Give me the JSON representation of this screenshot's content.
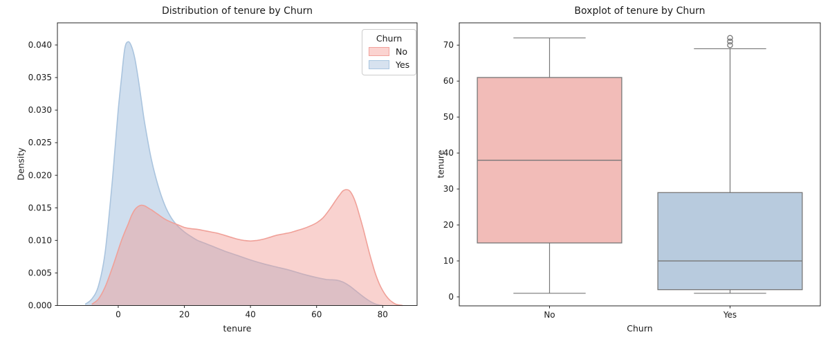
{
  "figure": {
    "background": "#ffffff",
    "text_color": "#1a1a1a",
    "spine_color": "#262626"
  },
  "chart_data": [
    {
      "type": "area",
      "subtype": "kde-density",
      "title": "Distribution of tenure by Churn",
      "xlabel": "tenure",
      "ylabel": "Density",
      "xlim": [
        -18.4,
        90.4
      ],
      "ylim": [
        0,
        0.0434
      ],
      "xticks": [
        "0",
        "20",
        "40",
        "60",
        "80"
      ],
      "yticks": [
        "0.000",
        "0.005",
        "0.010",
        "0.015",
        "0.020",
        "0.025",
        "0.030",
        "0.035",
        "0.040"
      ],
      "grid": false,
      "legend": {
        "title": "Churn",
        "position": "upper right",
        "entries": [
          {
            "label": "No",
            "fill": "#fbd3d0",
            "edge": "#f2a29c"
          },
          {
            "label": "Yes",
            "fill": "#d7e2ef",
            "edge": "#aac6e0"
          }
        ]
      },
      "series": [
        {
          "name": "Yes",
          "line_color": "#aac4de",
          "fill_color": "rgba(160,190,222,0.5)",
          "points": [
            [
              -10,
              0.0002
            ],
            [
              -8,
              0.001
            ],
            [
              -6,
              0.003
            ],
            [
              -4,
              0.008
            ],
            [
              -2,
              0.018
            ],
            [
              -1,
              0.024
            ],
            [
              0,
              0.03
            ],
            [
              1,
              0.035
            ],
            [
              2,
              0.0395
            ],
            [
              3,
              0.0405
            ],
            [
              4,
              0.0398
            ],
            [
              5,
              0.038
            ],
            [
              6,
              0.035
            ],
            [
              7,
              0.0315
            ],
            [
              8,
              0.028
            ],
            [
              10,
              0.0225
            ],
            [
              12,
              0.0185
            ],
            [
              14,
              0.0155
            ],
            [
              16,
              0.0135
            ],
            [
              18,
              0.0122
            ],
            [
              20,
              0.0113
            ],
            [
              22,
              0.0106
            ],
            [
              24,
              0.01
            ],
            [
              26,
              0.0096
            ],
            [
              28,
              0.0092
            ],
            [
              30,
              0.0088
            ],
            [
              33,
              0.0082
            ],
            [
              36,
              0.0077
            ],
            [
              40,
              0.007
            ],
            [
              44,
              0.0064
            ],
            [
              48,
              0.0059
            ],
            [
              52,
              0.0054
            ],
            [
              56,
              0.0048
            ],
            [
              60,
              0.0043
            ],
            [
              63,
              0.004
            ],
            [
              66,
              0.0039
            ],
            [
              68,
              0.0036
            ],
            [
              70,
              0.003
            ],
            [
              72,
              0.0022
            ],
            [
              74,
              0.0014
            ],
            [
              76,
              0.0007
            ],
            [
              78,
              0.0002
            ],
            [
              80,
              0.0
            ]
          ]
        },
        {
          "name": "No",
          "line_color": "#f0a098",
          "fill_color": "rgba(240,148,140,0.42)",
          "points": [
            [
              -8,
              0.0002
            ],
            [
              -6,
              0.001
            ],
            [
              -4,
              0.0028
            ],
            [
              -2,
              0.0055
            ],
            [
              0,
              0.0085
            ],
            [
              1,
              0.01
            ],
            [
              2,
              0.0113
            ],
            [
              3,
              0.0125
            ],
            [
              4,
              0.0138
            ],
            [
              5,
              0.0147
            ],
            [
              6,
              0.0152
            ],
            [
              7,
              0.0154
            ],
            [
              8,
              0.0153
            ],
            [
              9,
              0.015
            ],
            [
              10,
              0.0147
            ],
            [
              12,
              0.014
            ],
            [
              14,
              0.0133
            ],
            [
              16,
              0.0128
            ],
            [
              18,
              0.0124
            ],
            [
              20,
              0.012
            ],
            [
              22,
              0.0118
            ],
            [
              24,
              0.0117
            ],
            [
              26,
              0.0115
            ],
            [
              28,
              0.0113
            ],
            [
              30,
              0.0111
            ],
            [
              32,
              0.0108
            ],
            [
              34,
              0.0105
            ],
            [
              36,
              0.0102
            ],
            [
              38,
              0.01
            ],
            [
              40,
              0.0099
            ],
            [
              42,
              0.01
            ],
            [
              44,
              0.0102
            ],
            [
              46,
              0.0105
            ],
            [
              48,
              0.0108
            ],
            [
              50,
              0.011
            ],
            [
              52,
              0.0112
            ],
            [
              54,
              0.0115
            ],
            [
              56,
              0.0118
            ],
            [
              58,
              0.0122
            ],
            [
              60,
              0.0127
            ],
            [
              62,
              0.0135
            ],
            [
              64,
              0.0148
            ],
            [
              66,
              0.0163
            ],
            [
              67,
              0.017
            ],
            [
              68,
              0.0176
            ],
            [
              69,
              0.0178
            ],
            [
              70,
              0.0176
            ],
            [
              71,
              0.0168
            ],
            [
              72,
              0.0155
            ],
            [
              73,
              0.0138
            ],
            [
              74,
              0.012
            ],
            [
              75,
              0.01
            ],
            [
              76,
              0.008
            ],
            [
              77,
              0.0062
            ],
            [
              78,
              0.0046
            ],
            [
              79,
              0.0033
            ],
            [
              80,
              0.0023
            ],
            [
              81,
              0.0015
            ],
            [
              82,
              0.0009
            ],
            [
              83,
              0.0005
            ],
            [
              84,
              0.0002
            ],
            [
              86,
              0.0
            ]
          ]
        }
      ]
    },
    {
      "type": "box",
      "title": "Boxplot of tenure by Churn",
      "xlabel": "Churn",
      "ylabel": "tenure",
      "ylim": [
        -2.5,
        76.2
      ],
      "yticks": [
        "0",
        "10",
        "20",
        "30",
        "40",
        "50",
        "60",
        "70"
      ],
      "categories": [
        "No",
        "Yes"
      ],
      "line_color": "#767676",
      "boxes": [
        {
          "category": "No",
          "whisker_low": 1,
          "q1": 15,
          "median": 38,
          "q3": 61,
          "whisker_high": 72,
          "outliers": [],
          "fill_color": "#f2bcb8"
        },
        {
          "category": "Yes",
          "whisker_low": 1,
          "q1": 2,
          "median": 10,
          "q3": 29,
          "whisker_high": 69,
          "outliers": [
            70,
            71,
            72
          ],
          "fill_color": "#b8cbde"
        }
      ]
    }
  ]
}
